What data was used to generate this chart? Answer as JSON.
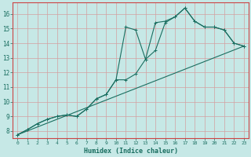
{
  "xlabel": "Humidex (Indice chaleur)",
  "bg_color": "#c6e8e6",
  "grid_color": "#a8d4d0",
  "line_color": "#1a6e60",
  "spine_color": "#cc4444",
  "xlim": [
    -0.5,
    23.5
  ],
  "ylim": [
    7.5,
    16.8
  ],
  "xticks": [
    0,
    1,
    2,
    3,
    4,
    5,
    6,
    7,
    8,
    9,
    10,
    11,
    12,
    13,
    14,
    15,
    16,
    17,
    18,
    19,
    20,
    21,
    22,
    23
  ],
  "yticks": [
    8,
    9,
    10,
    11,
    12,
    13,
    14,
    15,
    16
  ],
  "line1_x": [
    0,
    1,
    2,
    3,
    4,
    5,
    6,
    7,
    8,
    9,
    10,
    11,
    12,
    13,
    14,
    15,
    16,
    17,
    18,
    19,
    20,
    21,
    22,
    23
  ],
  "line1_y": [
    7.75,
    8.1,
    8.5,
    8.8,
    9.0,
    9.1,
    9.0,
    9.5,
    10.2,
    10.5,
    11.5,
    15.1,
    14.9,
    12.9,
    15.4,
    15.5,
    15.8,
    16.4,
    15.5,
    15.1,
    15.1,
    14.9,
    14.0,
    13.8
  ],
  "line2_x": [
    0,
    1,
    2,
    3,
    4,
    5,
    6,
    7,
    8,
    9,
    10,
    11,
    12,
    13,
    14,
    15,
    16,
    17,
    18,
    19,
    20,
    21,
    22,
    23
  ],
  "line2_y": [
    7.75,
    8.1,
    8.5,
    8.8,
    9.0,
    9.1,
    9.0,
    9.5,
    10.2,
    10.5,
    11.5,
    11.5,
    11.9,
    12.9,
    13.5,
    15.4,
    15.8,
    16.4,
    15.5,
    15.1,
    15.1,
    14.9,
    14.0,
    13.8
  ],
  "line3_x": [
    0,
    23
  ],
  "line3_y": [
    7.75,
    13.8
  ]
}
